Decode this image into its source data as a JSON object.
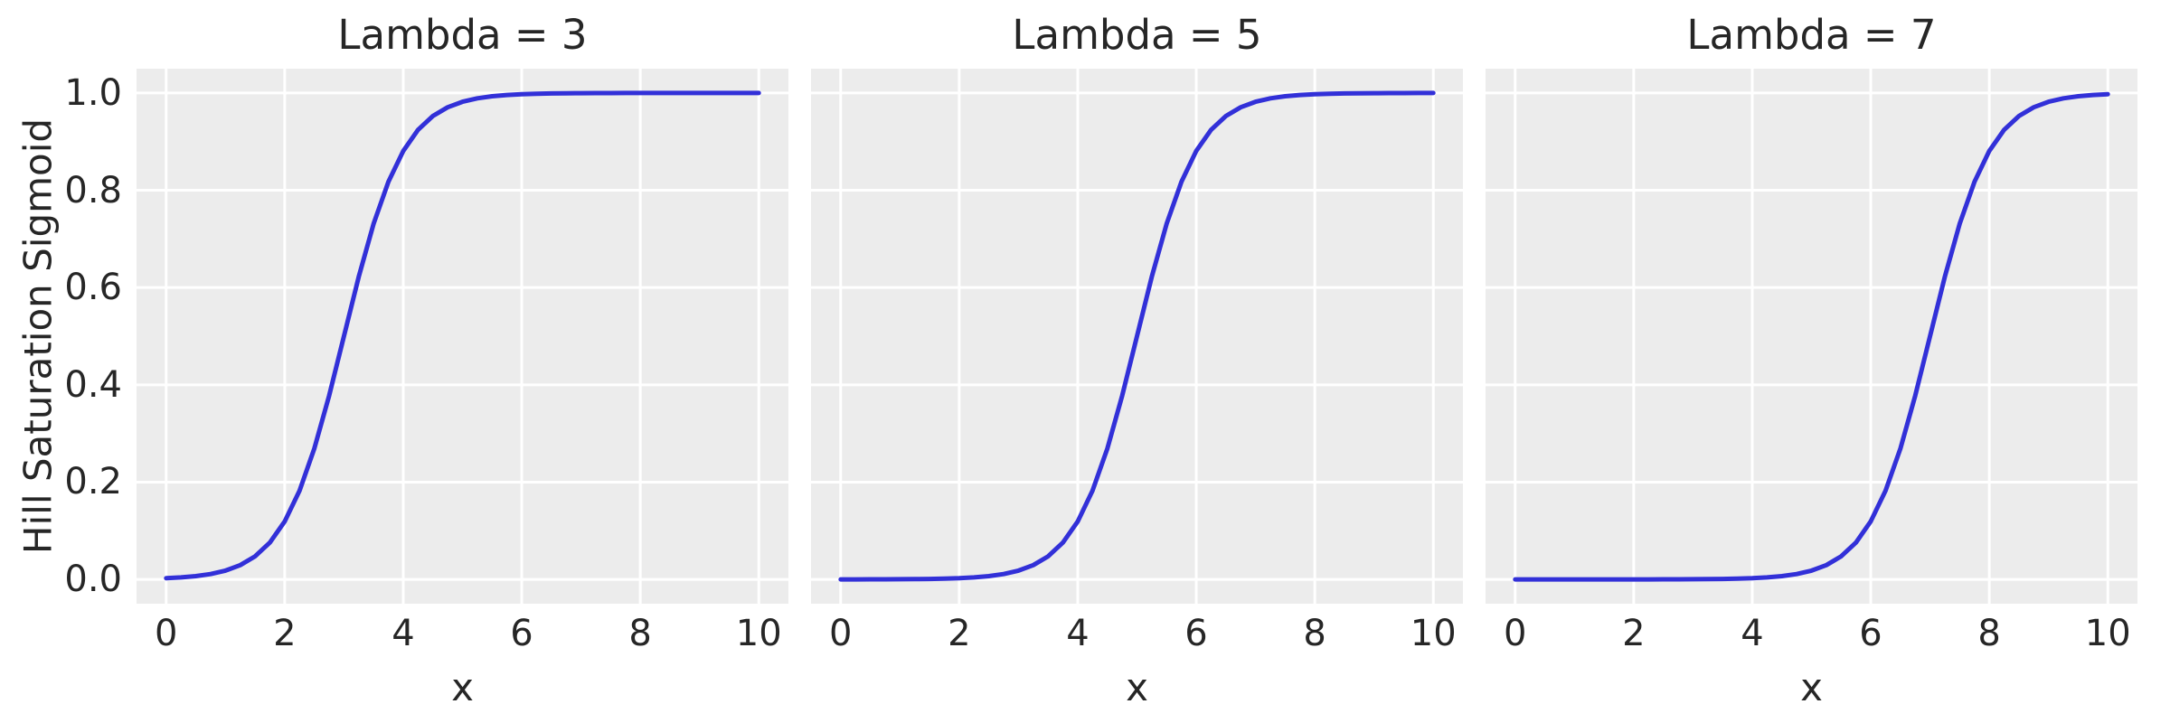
{
  "colors": {
    "line": "#3230d8",
    "panel_bg": "#ececec",
    "grid": "#ffffff",
    "text": "#262626",
    "figure_bg": "#ffffff"
  },
  "chart_data": [
    {
      "type": "line",
      "title": "Lambda = 3",
      "xlabel": "x",
      "ylabel": "Hill Saturation Sigmoid",
      "xlim": [
        -0.5,
        10.5
      ],
      "ylim": [
        -0.05,
        1.05
      ],
      "xticks": [
        0,
        2,
        4,
        6,
        8,
        10
      ],
      "yticks": [
        "0.0",
        "0.2",
        "0.4",
        "0.6",
        "0.8",
        "1.0"
      ],
      "grid": true,
      "x": [
        0,
        0.25,
        0.5,
        0.75,
        1,
        1.25,
        1.5,
        1.75,
        2,
        2.25,
        2.5,
        2.75,
        3,
        3.25,
        3.5,
        3.75,
        4,
        4.25,
        4.5,
        4.75,
        5,
        5.25,
        5.5,
        5.75,
        6,
        6.25,
        6.5,
        6.75,
        7,
        7.25,
        7.5,
        7.75,
        8,
        8.25,
        8.5,
        8.75,
        9,
        9.25,
        9.5,
        9.75,
        10
      ],
      "y": [
        0.002473,
        0.00407,
        0.006693,
        0.010987,
        0.017986,
        0.029312,
        0.047426,
        0.075858,
        0.119203,
        0.182426,
        0.268941,
        0.377541,
        0.5,
        0.622459,
        0.731059,
        0.817574,
        0.880797,
        0.924142,
        0.952574,
        0.970688,
        0.982014,
        0.989013,
        0.993307,
        0.995929,
        0.997527,
        0.998499,
        0.999089,
        0.999447,
        0.999665,
        0.999797,
        0.999877,
        0.999925,
        0.999955,
        0.999973,
        0.999983,
        0.99999,
        0.999994,
        0.999996,
        0.999998,
        0.999999,
        0.999999
      ]
    },
    {
      "type": "line",
      "title": "Lambda = 5",
      "xlabel": "x",
      "ylabel": "Hill Saturation Sigmoid",
      "xlim": [
        -0.5,
        10.5
      ],
      "ylim": [
        -0.05,
        1.05
      ],
      "xticks": [
        0,
        2,
        4,
        6,
        8,
        10
      ],
      "yticks": [
        "0.0",
        "0.2",
        "0.4",
        "0.6",
        "0.8",
        "1.0"
      ],
      "grid": true,
      "x": [
        0,
        0.25,
        0.5,
        0.75,
        1,
        1.25,
        1.5,
        1.75,
        2,
        2.25,
        2.5,
        2.75,
        3,
        3.25,
        3.5,
        3.75,
        4,
        4.25,
        4.5,
        4.75,
        5,
        5.25,
        5.5,
        5.75,
        6,
        6.25,
        6.5,
        6.75,
        7,
        7.25,
        7.5,
        7.75,
        8,
        8.25,
        8.5,
        8.75,
        9,
        9.25,
        9.5,
        9.75,
        10
      ],
      "y": [
        4.5e-05,
        7.5e-05,
        0.000123,
        0.000203,
        0.000335,
        0.000553,
        0.000911,
        0.001503,
        0.002473,
        0.00407,
        0.006693,
        0.010987,
        0.017986,
        0.029312,
        0.047426,
        0.075858,
        0.119203,
        0.182426,
        0.268941,
        0.377541,
        0.5,
        0.622459,
        0.731059,
        0.817574,
        0.880797,
        0.924142,
        0.952574,
        0.970688,
        0.982014,
        0.989013,
        0.993307,
        0.995929,
        0.997527,
        0.998499,
        0.999089,
        0.999447,
        0.999665,
        0.999797,
        0.999877,
        0.999925,
        0.999955
      ]
    },
    {
      "type": "line",
      "title": "Lambda = 7",
      "xlabel": "x",
      "ylabel": "Hill Saturation Sigmoid",
      "xlim": [
        -0.5,
        10.5
      ],
      "ylim": [
        -0.05,
        1.05
      ],
      "xticks": [
        0,
        2,
        4,
        6,
        8,
        10
      ],
      "yticks": [
        "0.0",
        "0.2",
        "0.4",
        "0.6",
        "0.8",
        "1.0"
      ],
      "grid": true,
      "x": [
        0,
        0.25,
        0.5,
        0.75,
        1,
        1.25,
        1.5,
        1.75,
        2,
        2.25,
        2.5,
        2.75,
        3,
        3.25,
        3.5,
        3.75,
        4,
        4.25,
        4.5,
        4.75,
        5,
        5.25,
        5.5,
        5.75,
        6,
        6.25,
        6.5,
        6.75,
        7,
        7.25,
        7.5,
        7.75,
        8,
        8.25,
        8.5,
        8.75,
        9,
        9.25,
        9.5,
        9.75,
        10
      ],
      "y": [
        1e-06,
        1e-06,
        2e-06,
        4e-06,
        6e-06,
        1e-05,
        1.7e-05,
        2.8e-05,
        4.5e-05,
        7.5e-05,
        0.000123,
        0.000203,
        0.000335,
        0.000553,
        0.000911,
        0.001503,
        0.002473,
        0.00407,
        0.006693,
        0.010987,
        0.017986,
        0.029312,
        0.047426,
        0.075858,
        0.119203,
        0.182426,
        0.268941,
        0.377541,
        0.5,
        0.622459,
        0.731059,
        0.817574,
        0.880797,
        0.924142,
        0.952574,
        0.970688,
        0.982014,
        0.989013,
        0.993307,
        0.995929,
        0.997527
      ]
    }
  ]
}
